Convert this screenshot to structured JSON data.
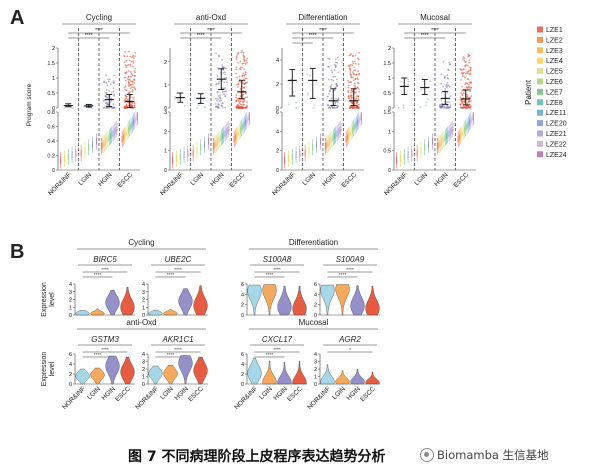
{
  "figure": {
    "panel_a_letter": "A",
    "panel_b_letter": "B"
  },
  "caption": {
    "title": "图 7 不同病理阶段上皮程序表达趋势分析",
    "watermark": "Biomamba 生信基地",
    "watermark_icon": "wechat-channel-icon"
  },
  "chart_data": [
    {
      "id": "panel-a",
      "type": "scatter",
      "ylabel": "Program score",
      "stages": [
        "NOR&INF",
        "LGIN",
        "HGIN",
        "ESCC"
      ],
      "stage_colors": [
        "#7fa6c8",
        "#8fb7cf",
        "#7e6fb0",
        "#e34a33"
      ],
      "legend": {
        "title": "Patient",
        "placement": "right",
        "patients": [
          "LZE1",
          "LZE2",
          "LZE3",
          "LZE4",
          "LZE5",
          "LZE6",
          "LZE7",
          "LZE8",
          "LZE11",
          "LZE20",
          "LZE21",
          "LZE22",
          "LZE24"
        ],
        "colors": [
          "#e8534a",
          "#f08a3e",
          "#f6b142",
          "#f3cf57",
          "#d8dc7f",
          "#a9d27a",
          "#6fc07e",
          "#5db9a8",
          "#5aa7d0",
          "#7c95d2",
          "#a89ad3",
          "#c9a7d8",
          "#b56aa8"
        ]
      },
      "programs": [
        {
          "name": "Cycling",
          "top": {
            "ylim": [
              0,
              2.0
            ],
            "ticks": [
              0,
              0.5,
              1.0,
              1.5,
              2.0
            ],
            "centers": [
              0.08,
              0.07,
              0.28,
              0.22
            ],
            "whisker_low": [
              0.04,
              0.03,
              0.05,
              0.02
            ],
            "whisker_high": [
              0.14,
              0.12,
              0.45,
              0.45
            ],
            "cloud_counts": [
              6,
              8,
              60,
              140
            ],
            "cloud_max": [
              0.14,
              0.12,
              1.1,
              1.9
            ]
          },
          "bottom": {
            "ylim": [
              0,
              0.8
            ],
            "ticks": [
              0,
              0.2,
              0.4,
              0.6,
              0.8
            ]
          },
          "stat_brackets": [
            {
              "from": 0,
              "to": 3,
              "label": "****"
            },
            {
              "from": 0,
              "to": 2,
              "label": "****"
            }
          ]
        },
        {
          "name": "anti-Oxd",
          "top": {
            "ylim": [
              0,
              2.6
            ],
            "ticks": [
              0,
              1,
              2
            ],
            "centers": [
              0.45,
              0.42,
              1.25,
              0.7
            ],
            "whisker_low": [
              0.25,
              0.2,
              0.8,
              0.4
            ],
            "whisker_high": [
              0.65,
              0.62,
              1.7,
              1.2
            ],
            "cloud_counts": [
              5,
              7,
              70,
              160
            ],
            "cloud_max": [
              0.65,
              0.62,
              2.4,
              2.5
            ]
          },
          "bottom": {
            "ylim": [
              0,
              3
            ],
            "ticks": [
              0,
              1,
              2,
              3
            ]
          },
          "stat_brackets": [
            {
              "from": 0,
              "to": 3,
              "label": "****"
            },
            {
              "from": 0,
              "to": 2,
              "label": "****"
            }
          ]
        },
        {
          "name": "Differentiation",
          "top": {
            "ylim": [
              0,
              5
            ],
            "ticks": [
              0,
              2,
              4
            ],
            "centers": [
              2.3,
              2.3,
              0.6,
              0.6
            ],
            "whisker_low": [
              1.0,
              0.8,
              0.2,
              0.2
            ],
            "whisker_high": [
              3.2,
              3.3,
              1.6,
              1.6
            ],
            "cloud_counts": [
              5,
              6,
              70,
              150
            ],
            "cloud_max": [
              3.2,
              3.3,
              4.6,
              4.6
            ]
          },
          "bottom": {
            "ylim": [
              0,
              6
            ],
            "ticks": [
              0,
              2,
              4,
              6
            ]
          },
          "stat_brackets": [
            {
              "from": 0,
              "to": 3,
              "label": "****"
            },
            {
              "from": 0,
              "to": 2,
              "label": "****"
            },
            {
              "from": 0,
              "to": 1,
              "label": "*"
            }
          ]
        },
        {
          "name": "Mucosal",
          "top": {
            "ylim": [
              0,
              2.0
            ],
            "ticks": [
              0.0,
              0.5,
              1.0,
              1.5,
              2.0
            ],
            "centers": [
              0.72,
              0.68,
              0.32,
              0.3
            ],
            "whisker_low": [
              0.45,
              0.45,
              0.12,
              0.1
            ],
            "whisker_high": [
              1.0,
              0.95,
              0.55,
              0.6
            ],
            "cloud_counts": [
              6,
              8,
              70,
              150
            ],
            "cloud_max": [
              1.0,
              0.95,
              1.6,
              1.8
            ]
          },
          "bottom": {
            "ylim": [
              0,
              1.5
            ],
            "ticks": [
              0.0,
              0.5,
              1.0,
              1.5
            ]
          },
          "stat_brackets": [
            {
              "from": 0,
              "to": 3,
              "label": "****"
            },
            {
              "from": 0,
              "to": 2,
              "label": "****"
            }
          ]
        }
      ]
    },
    {
      "id": "panel-b",
      "type": "violin",
      "ylabel_line1": "Expression",
      "ylabel_line2": "level",
      "stages": [
        "NOR&INF",
        "LGIN",
        "HGIN",
        "ESCC"
      ],
      "stage_colors": [
        "#9cd3e6",
        "#f3a04a",
        "#8b84c4",
        "#e24a2d"
      ],
      "groups": [
        {
          "name": "Cycling",
          "genes": [
            {
              "name": "BIRC5",
              "ylim": [
                0,
                4
              ],
              "ticks": [
                0,
                1,
                2,
                3,
                4
              ],
              "peaks": [
                0.2,
                0.2,
                1.6,
                1.0
              ],
              "tails": [
                0.6,
                0.8,
                3.2,
                3.6
              ],
              "stat_brackets": [
                {
                  "from": 0,
                  "to": 3,
                  "label": "****"
                },
                {
                  "from": 0,
                  "to": 2,
                  "label": "****"
                }
              ]
            },
            {
              "name": "UBE2C",
              "ylim": [
                0,
                4
              ],
              "ticks": [
                0,
                1,
                2,
                3,
                4
              ],
              "peaks": [
                0.2,
                0.2,
                1.8,
                1.2
              ],
              "tails": [
                0.6,
                0.7,
                3.4,
                3.8
              ],
              "stat_brackets": [
                {
                  "from": 0,
                  "to": 3,
                  "label": "****"
                },
                {
                  "from": 0,
                  "to": 2,
                  "label": "****"
                }
              ]
            }
          ]
        },
        {
          "name": "Differentiation",
          "genes": [
            {
              "name": "S100A8",
              "ylim": [
                0,
                6
              ],
              "ticks": [
                0,
                2,
                4,
                6
              ],
              "peaks": [
                4.6,
                4.8,
                1.6,
                1.2
              ],
              "tails": [
                5.8,
                5.9,
                5.6,
                5.6
              ],
              "stat_brackets": [
                {
                  "from": 0,
                  "to": 3,
                  "label": "****"
                },
                {
                  "from": 0,
                  "to": 2,
                  "label": "****"
                }
              ]
            },
            {
              "name": "S100A9",
              "ylim": [
                0,
                6
              ],
              "ticks": [
                0,
                2,
                4,
                6
              ],
              "peaks": [
                4.8,
                5.0,
                1.8,
                1.3
              ],
              "tails": [
                5.8,
                5.9,
                5.7,
                5.6
              ],
              "stat_brackets": [
                {
                  "from": 0,
                  "to": 3,
                  "label": "****"
                },
                {
                  "from": 0,
                  "to": 2,
                  "label": "****"
                }
              ]
            }
          ]
        },
        {
          "name": "anti-Oxd",
          "genes": [
            {
              "name": "GSTM3",
              "ylim": [
                0,
                6
              ],
              "ticks": [
                0,
                2,
                4,
                6
              ],
              "peaks": [
                1.6,
                1.8,
                3.6,
                2.4
              ],
              "tails": [
                3.0,
                3.2,
                5.6,
                5.4
              ],
              "stat_brackets": [
                {
                  "from": 0,
                  "to": 3,
                  "label": "****"
                },
                {
                  "from": 0,
                  "to": 2,
                  "label": "****"
                }
              ]
            },
            {
              "name": "AKR1C1",
              "ylim": [
                0,
                4
              ],
              "ticks": [
                0,
                1,
                2,
                3,
                4
              ],
              "peaks": [
                1.4,
                1.4,
                2.8,
                1.8
              ],
              "tails": [
                2.4,
                2.5,
                3.8,
                3.6
              ],
              "stat_brackets": [
                {
                  "from": 0,
                  "to": 3,
                  "label": "****"
                },
                {
                  "from": 0,
                  "to": 2,
                  "label": "****"
                }
              ]
            }
          ]
        },
        {
          "name": "Mucosal",
          "genes": [
            {
              "name": "CXCL17",
              "ylim": [
                0,
                6
              ],
              "ticks": [
                0,
                2,
                4,
                6
              ],
              "peaks": [
                2.2,
                0.4,
                0.3,
                0.3
              ],
              "tails": [
                5.2,
                4.6,
                4.4,
                4.6
              ],
              "stat_brackets": [
                {
                  "from": 0,
                  "to": 3,
                  "label": "****"
                },
                {
                  "from": 0,
                  "to": 2,
                  "label": "****"
                }
              ]
            },
            {
              "name": "AGR2",
              "ylim": [
                0,
                4
              ],
              "ticks": [
                0,
                1,
                2,
                3,
                4
              ],
              "peaks": [
                0.3,
                0.3,
                0.3,
                0.2
              ],
              "tails": [
                2.6,
                1.8,
                2.0,
                1.6
              ],
              "stat_brackets": [
                {
                  "from": 0,
                  "to": 3,
                  "label": "*"
                }
              ]
            }
          ]
        }
      ]
    }
  ]
}
